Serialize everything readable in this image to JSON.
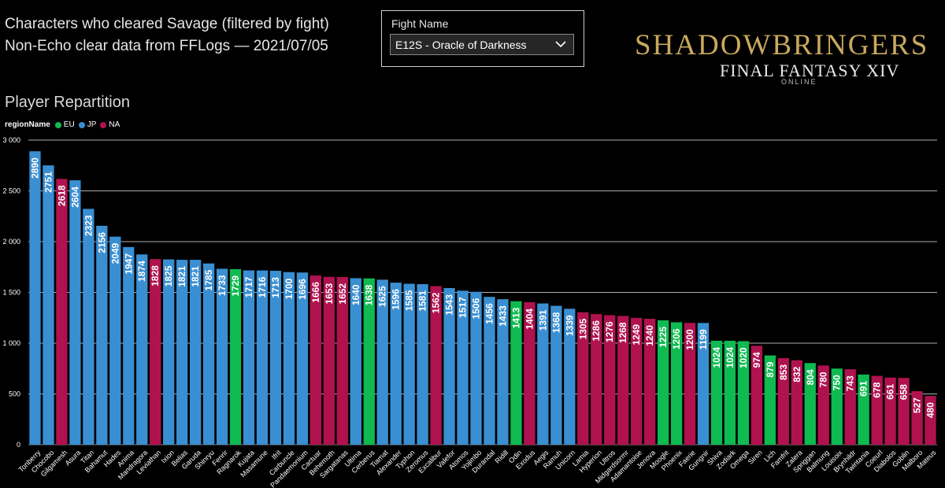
{
  "header": {
    "title_line1": "Characters who cleared Savage (filtered by fight)",
    "title_line2": "Non-Echo clear data from FFLogs — 2021/07/05"
  },
  "slicer": {
    "label": "Fight Name",
    "selected": "E12S - Oracle of Darkness"
  },
  "logo": {
    "main": "SHADOWBRINGERS",
    "sub": "FINAL FANTASY XIV",
    "online": "ONLINE"
  },
  "colors": {
    "EU": "#0fba51",
    "JP": "#3a8fd2",
    "NA": "#b0124f",
    "grid": "#cccccc"
  },
  "chart_data": {
    "type": "bar",
    "title": "Player Repartition",
    "legend_title": "regionName",
    "legend": [
      "EU",
      "JP",
      "NA"
    ],
    "legend_position": "top-left",
    "ylim": [
      0,
      3000
    ],
    "yticks": [
      0,
      500,
      1000,
      1500,
      2000,
      2500,
      3000
    ],
    "ytick_labels": [
      "0",
      "500",
      "1 000",
      "1 500",
      "2 000",
      "2 500",
      "3 000"
    ],
    "grid": true,
    "categories": [
      "Tonberry",
      "Chocobo",
      "Gilgamesh",
      "Asura",
      "Titan",
      "Bahamut",
      "Hades",
      "Anima",
      "Mandragora",
      "Leviathan",
      "Ixion",
      "Belias",
      "Garuda",
      "Shinryu",
      "Fenrir",
      "Ragnarok",
      "Kujata",
      "Masamune",
      "Ifrit",
      "Carbuncle",
      "Pandaemonium",
      "Cactuar",
      "Behemoth",
      "Sargatanas",
      "Ultima",
      "Cerberus",
      "Tiamat",
      "Alexander",
      "Typhon",
      "Zeromus",
      "Excalibur",
      "Valefor",
      "Atomos",
      "Yojimbo",
      "Durandal",
      "Ridill",
      "Odin",
      "Exodus",
      "Aegis",
      "Ramuh",
      "Unicorn",
      "Lamia",
      "Hyperion",
      "Ultros",
      "Midgardsormr",
      "Adamantoise",
      "Jenova",
      "Moogle",
      "Phoenix",
      "Faerie",
      "Gungnir",
      "Shiva",
      "Zodiark",
      "Omega",
      "Siren",
      "Lich",
      "Famfrit",
      "Zalera",
      "Spriggan",
      "Balmung",
      "Louisoix",
      "Brynhildr",
      "Twintania",
      "Coeurl",
      "Diabolos",
      "Goblin",
      "Malboro",
      "Mateus"
    ],
    "values": [
      2890,
      2751,
      2618,
      2604,
      2323,
      2156,
      2049,
      1947,
      1874,
      1828,
      1825,
      1821,
      1821,
      1785,
      1733,
      1729,
      1717,
      1716,
      1713,
      1700,
      1696,
      1666,
      1653,
      1652,
      1640,
      1638,
      1625,
      1596,
      1585,
      1581,
      1562,
      1543,
      1517,
      1506,
      1456,
      1433,
      1413,
      1404,
      1391,
      1368,
      1339,
      1305,
      1286,
      1276,
      1268,
      1249,
      1240,
      1225,
      1206,
      1200,
      1199,
      1024,
      1024,
      1020,
      974,
      879,
      853,
      832,
      804,
      780,
      750,
      743,
      691,
      678,
      661,
      658,
      527,
      480
    ],
    "regions": [
      "JP",
      "JP",
      "NA",
      "JP",
      "JP",
      "JP",
      "JP",
      "JP",
      "JP",
      "NA",
      "JP",
      "JP",
      "JP",
      "JP",
      "JP",
      "EU",
      "JP",
      "JP",
      "JP",
      "JP",
      "JP",
      "NA",
      "NA",
      "NA",
      "JP",
      "EU",
      "JP",
      "JP",
      "JP",
      "JP",
      "NA",
      "JP",
      "JP",
      "JP",
      "JP",
      "JP",
      "EU",
      "NA",
      "JP",
      "JP",
      "JP",
      "NA",
      "NA",
      "NA",
      "NA",
      "NA",
      "NA",
      "EU",
      "EU",
      "NA",
      "JP",
      "EU",
      "EU",
      "EU",
      "NA",
      "EU",
      "NA",
      "NA",
      "EU",
      "NA",
      "EU",
      "NA",
      "EU",
      "NA",
      "NA",
      "NA",
      "NA",
      "NA"
    ]
  }
}
